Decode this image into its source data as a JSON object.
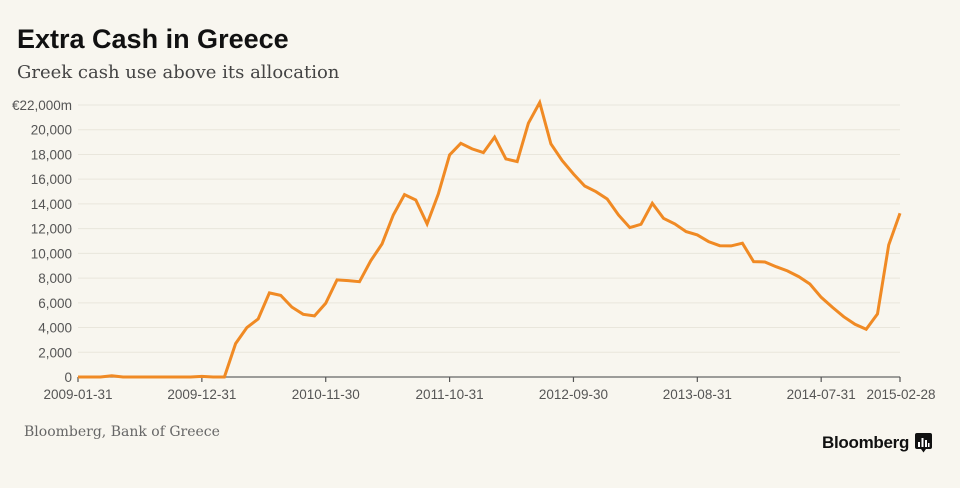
{
  "title": "Extra Cash in Greece",
  "subtitle": "Greek cash use above its allocation",
  "source": "Bloomberg, Bank of Greece",
  "logo": "Bloomberg",
  "chart_data": {
    "type": "line",
    "title": "Extra Cash in Greece",
    "subtitle": "Greek cash use above its allocation",
    "xlabel": "",
    "ylabel": "",
    "x_start": "2009-01-31",
    "x_end": "2015-02-28",
    "x_frequency": "monthly (month-end)",
    "x_tick_labels": [
      "2009-01-31",
      "2009-12-31",
      "2010-11-30",
      "2011-10-31",
      "2012-09-30",
      "2013-08-31",
      "2014-07-31",
      "2015-02-28"
    ],
    "y_tick_labels": [
      "0",
      "2,000",
      "4,000",
      "6,000",
      "8,000",
      "10,000",
      "12,000",
      "14,000",
      "16,000",
      "18,000",
      "20,000",
      "€22,000m"
    ],
    "y_ticks": [
      0,
      2000,
      4000,
      6000,
      8000,
      10000,
      12000,
      14000,
      16000,
      18000,
      20000,
      22000
    ],
    "ylim": [
      0,
      22000
    ],
    "grid": "horizontal",
    "color": "#f08a24",
    "series": [
      {
        "values": [
          0,
          0,
          0,
          100,
          0,
          0,
          0,
          0,
          0,
          0,
          0,
          50,
          0,
          0,
          2700,
          4000,
          4700,
          6800,
          6600,
          5650,
          5070,
          4940,
          5960,
          7850,
          7800,
          7710,
          9410,
          10760,
          13100,
          14750,
          14320,
          12380,
          14800,
          17960,
          18900,
          18450,
          18150,
          19400,
          17640,
          17420,
          20530,
          22200,
          18850,
          17500,
          16420,
          15450,
          14990,
          14400,
          13100,
          12080,
          12350,
          14050,
          12840,
          12380,
          11760,
          11490,
          10950,
          10620,
          10600,
          10820,
          9330,
          9300,
          8920,
          8580,
          8120,
          7520,
          6450,
          5640,
          4880,
          4260,
          3860,
          5100,
          10680,
          13240
        ]
      }
    ]
  }
}
